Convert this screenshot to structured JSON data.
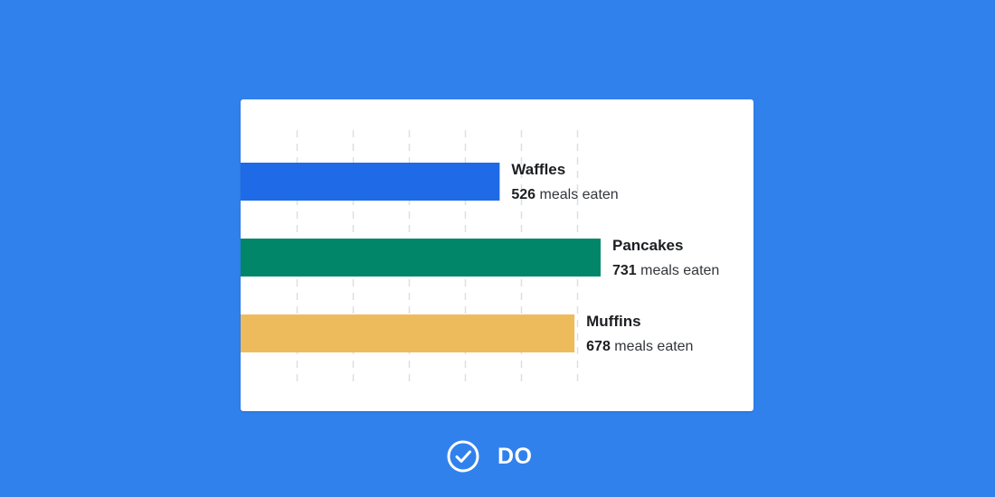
{
  "chart_data": {
    "type": "bar",
    "orientation": "horizontal",
    "categories": [
      "Waffles",
      "Pancakes",
      "Muffins"
    ],
    "values": [
      526,
      731,
      678
    ],
    "unit": "meals eaten",
    "colors": [
      "#1f6ae6",
      "#02866a",
      "#eebb5c"
    ],
    "grid": true,
    "x_grid_step": 114
  },
  "badge": {
    "icon": "check-circle-icon",
    "label": "DO"
  },
  "colors": {
    "background": "#3181ed",
    "card": "#ffffff",
    "grid": "#dddfe3"
  }
}
